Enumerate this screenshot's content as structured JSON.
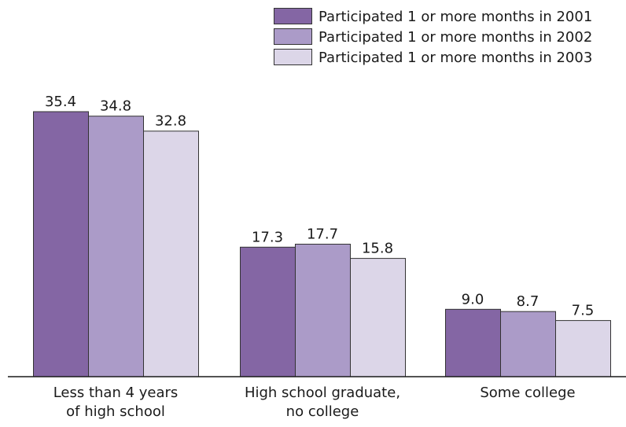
{
  "chart_data": {
    "type": "bar",
    "title": "",
    "xlabel": "",
    "ylabel": "",
    "ylim": [
      0,
      40
    ],
    "grid": false,
    "legend_position": "top-right",
    "categories": [
      [
        "Less than 4 years",
        "of high school"
      ],
      [
        "High school graduate,",
        "no college"
      ],
      [
        "Some college"
      ]
    ],
    "series": [
      {
        "name": "Participated 1 or more months in 2001",
        "color": "#8466a4",
        "values": [
          35.4,
          17.3,
          9.0
        ],
        "labels": [
          "35.4",
          "17.3",
          "9.0"
        ]
      },
      {
        "name": "Participated 1 or more months in 2002",
        "color": "#ab9bc8",
        "values": [
          34.8,
          17.7,
          8.7
        ],
        "labels": [
          "34.8",
          "17.7",
          "8.7"
        ]
      },
      {
        "name": "Participated 1 or more months in 2003",
        "color": "#dcd6e8",
        "values": [
          32.8,
          15.8,
          7.5
        ],
        "labels": [
          "32.8",
          "15.8",
          "7.5"
        ]
      }
    ]
  }
}
